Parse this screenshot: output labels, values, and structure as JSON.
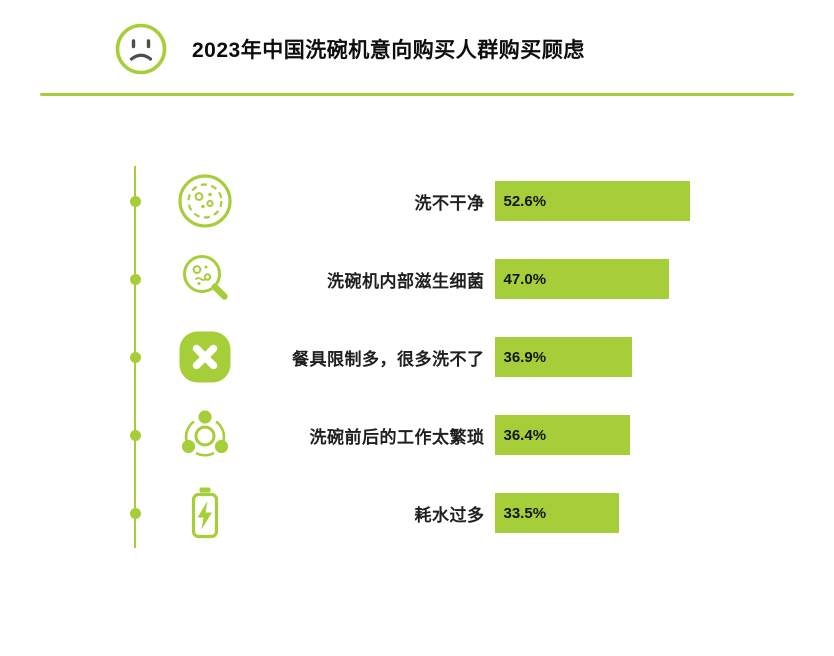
{
  "header": {
    "title": "2023年中国洗碗机意向购买人群购买顾虑"
  },
  "colors": {
    "accent": "#a6ce39",
    "text": "#1a1a1a",
    "bar_fill": "#a6ce39",
    "bar_label_color": "#141414",
    "background": "#ffffff"
  },
  "chart_data": {
    "type": "bar",
    "orientation": "horizontal",
    "title": "2023年中国洗碗机意向购买人群购买顾虑",
    "categories": [
      "洗不干净",
      "洗碗机内部滋生细菌",
      "餐具限制多，很多洗不了",
      "洗碗前后的工作太繁琐",
      "耗水过多"
    ],
    "values": [
      52.6,
      47.0,
      36.9,
      36.4,
      33.5
    ],
    "value_labels": [
      "52.6%",
      "47.0%",
      "36.9%",
      "36.4%",
      "33.5%"
    ],
    "unit": "%",
    "xlim": [
      0,
      60
    ],
    "grid": false,
    "legend": "none",
    "bar_color": "#a6ce39",
    "icons": [
      "petri-dish-icon",
      "bacteria-magnifier-icon",
      "cross-mark-icon",
      "process-circles-icon",
      "battery-bolt-icon"
    ]
  }
}
